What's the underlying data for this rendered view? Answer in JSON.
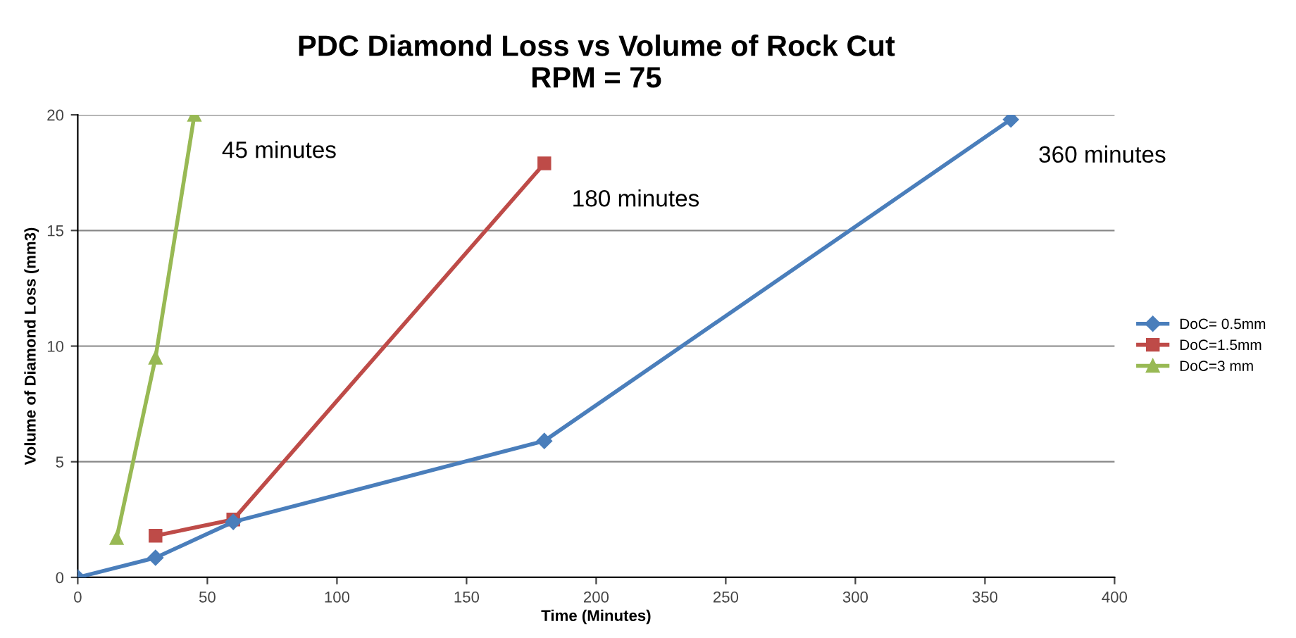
{
  "chart_data": {
    "type": "line",
    "title": "PDC Diamond Loss vs Volume of Rock Cut\nRPM = 75",
    "xlabel": "Time (Minutes)",
    "ylabel": "Volume of Diamond Loss (mm3)",
    "series": [
      {
        "name": "DoC= 0.5mm",
        "color": "#4a7ebb",
        "marker": "diamond",
        "x": [
          0,
          30,
          60,
          180,
          360
        ],
        "values": [
          0,
          0.85,
          2.4,
          5.9,
          19.8
        ]
      },
      {
        "name": "DoC=1.5mm",
        "color": "#be4b48",
        "marker": "square",
        "x": [
          30,
          60,
          180
        ],
        "values": [
          1.8,
          2.5,
          17.9
        ]
      },
      {
        "name": "DoC=3 mm",
        "color": "#98b954",
        "marker": "triangle",
        "x": [
          15,
          30,
          45
        ],
        "values": [
          1.7,
          9.5,
          20
        ]
      }
    ],
    "annotations": [
      {
        "text": "45 minutes",
        "x": 45,
        "y": 20
      },
      {
        "text": "180 minutes",
        "x": 180,
        "y": 17.9
      },
      {
        "text": "360 minutes",
        "x": 360,
        "y": 19.8
      }
    ],
    "xlim": [
      0,
      400
    ],
    "xticks": [
      0,
      50,
      100,
      150,
      200,
      250,
      300,
      350,
      400
    ],
    "ylim": [
      0,
      20
    ],
    "yticks": [
      0,
      5,
      10,
      15,
      20
    ],
    "grid": "y",
    "legend": "right",
    "line_style": "solid"
  }
}
